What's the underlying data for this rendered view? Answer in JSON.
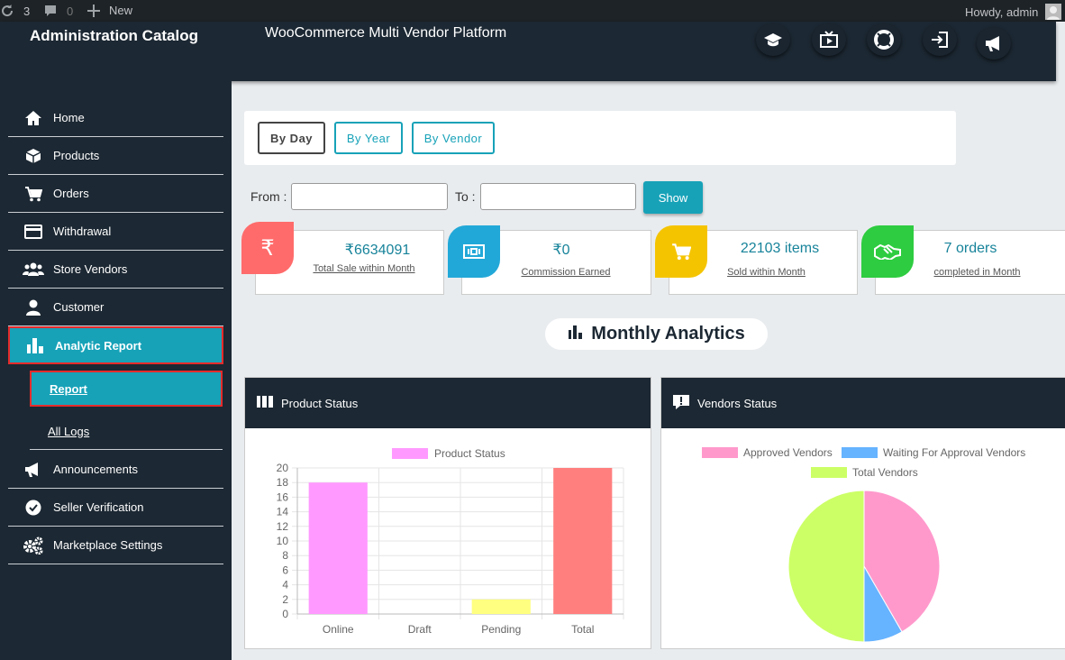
{
  "admin_bar": {
    "updates": "3",
    "comments": "0",
    "new_label": "New",
    "greeting": "Howdy, admin"
  },
  "header": {
    "brand": "Administration Catalog",
    "subtitle": "WooCommerce Multi Vendor Platform"
  },
  "header_icons": [
    "graduation-cap-icon",
    "video-icon",
    "lifebuoy-icon",
    "sign-out-icon",
    "megaphone-icon"
  ],
  "sidebar": {
    "items": [
      {
        "label": "Home",
        "icon": "home-icon"
      },
      {
        "label": "Products",
        "icon": "box-icon"
      },
      {
        "label": "Orders",
        "icon": "cart-icon"
      },
      {
        "label": "Withdrawal",
        "icon": "credit-card-icon"
      },
      {
        "label": "Store Vendors",
        "icon": "users-icon"
      },
      {
        "label": "Customer",
        "icon": "user-icon"
      },
      {
        "label": "Analytic Report",
        "icon": "bar-chart-icon"
      },
      {
        "label": "Announcements",
        "icon": "megaphone-icon"
      },
      {
        "label": "Seller Verification",
        "icon": "check-circle-icon"
      },
      {
        "label": "Marketplace Settings",
        "icon": "cogs-icon"
      }
    ],
    "submenu": [
      {
        "label": "Report"
      },
      {
        "label": "All Logs"
      }
    ]
  },
  "filters": {
    "tabs": [
      "By Day",
      "By Year",
      "By Vendor"
    ],
    "selected": "By Day",
    "from_label": "From :",
    "to_label": "To :",
    "from_value": "",
    "to_value": "",
    "show_label": "Show"
  },
  "stats": [
    {
      "value": "₹6634091",
      "label": "Total Sale within Month",
      "icon": "rupee-icon",
      "color": "#ff6b6b"
    },
    {
      "value": "₹0",
      "label": "Commission Earned",
      "icon": "money-icon",
      "color": "#22a8d8"
    },
    {
      "value": "22103 items",
      "label": "Sold within Month",
      "icon": "cart-icon",
      "color": "#f5c400"
    },
    {
      "value": "7 orders",
      "label": "completed in Month",
      "icon": "handshake-icon",
      "color": "#2ecc40"
    }
  ],
  "analytics_title": "Monthly Analytics",
  "product_panel": {
    "title": "Product Status",
    "icon": "columns-icon"
  },
  "vendor_panel": {
    "title": "Vendors Status",
    "icon": "alert-icon"
  },
  "chart_data": [
    {
      "type": "bar",
      "categories": [
        "Online",
        "Draft",
        "Pending",
        "Total"
      ],
      "series": [
        {
          "name": "Product Status",
          "values": [
            18,
            0,
            2,
            20
          ]
        }
      ],
      "bar_colors": [
        "#ff99ff",
        "#ff99ff",
        "#ffff80",
        "#ff7f7f"
      ],
      "legend_color": "#ff99ff",
      "ylim": [
        0,
        20
      ],
      "yticks": [
        0,
        2,
        4,
        6,
        8,
        10,
        12,
        14,
        16,
        18,
        20
      ],
      "grid": true,
      "legend": "top"
    },
    {
      "type": "pie",
      "labels": [
        "Approved Vendors",
        "Waiting For Approval Vendors",
        "Total Vendors"
      ],
      "values": [
        5,
        1,
        6
      ],
      "colors": [
        "#ff99cc",
        "#66b3ff",
        "#ccff66"
      ],
      "legend": "top"
    }
  ]
}
